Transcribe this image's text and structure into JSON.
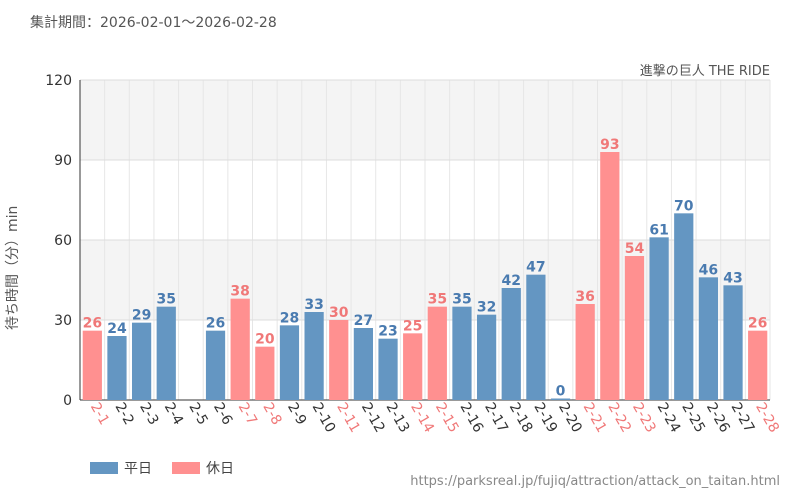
{
  "title": "集計期間：2026-02-01～2026-02-28",
  "colors": {
    "weekday": "#6496c2",
    "holiday": "#ff9090",
    "weekday_label": "#4a7bb0",
    "holiday_label": "#f07878",
    "grid": "#e6e6e6",
    "band": "#f4f4f4"
  },
  "chart_data": {
    "type": "bar",
    "title": "集計期間：2026-02-01～2026-02-28",
    "subtitle": "進撃の巨人 THE RIDE",
    "xlabel": "",
    "ylabel": "待ち時間（分）min",
    "ylim": [
      0,
      120
    ],
    "yticks": [
      0,
      30,
      60,
      90,
      120
    ],
    "categories": [
      "2-1",
      "2-2",
      "2-3",
      "2-4",
      "2-5",
      "2-6",
      "2-7",
      "2-8",
      "2-9",
      "2-10",
      "2-11",
      "2-12",
      "2-13",
      "2-14",
      "2-15",
      "2-16",
      "2-17",
      "2-18",
      "2-19",
      "2-20",
      "2-21",
      "2-22",
      "2-23",
      "2-24",
      "2-25",
      "2-26",
      "2-27",
      "2-28"
    ],
    "values": [
      26,
      24,
      29,
      35,
      null,
      26,
      38,
      20,
      28,
      33,
      30,
      27,
      23,
      25,
      35,
      35,
      32,
      42,
      47,
      0,
      36,
      93,
      54,
      61,
      70,
      46,
      43,
      26
    ],
    "day_type": [
      "holiday",
      "weekday",
      "weekday",
      "weekday",
      "weekday",
      "weekday",
      "holiday",
      "holiday",
      "weekday",
      "weekday",
      "holiday",
      "weekday",
      "weekday",
      "holiday",
      "holiday",
      "weekday",
      "weekday",
      "weekday",
      "weekday",
      "weekday",
      "holiday",
      "holiday",
      "holiday",
      "weekday",
      "weekday",
      "weekday",
      "weekday",
      "holiday"
    ],
    "legend": [
      {
        "key": "weekday",
        "label": "平日"
      },
      {
        "key": "holiday",
        "label": "休日"
      }
    ],
    "grid": true
  },
  "source_url": "https://parksreal.jp/fujiq/attraction/attack_on_taitan.html"
}
